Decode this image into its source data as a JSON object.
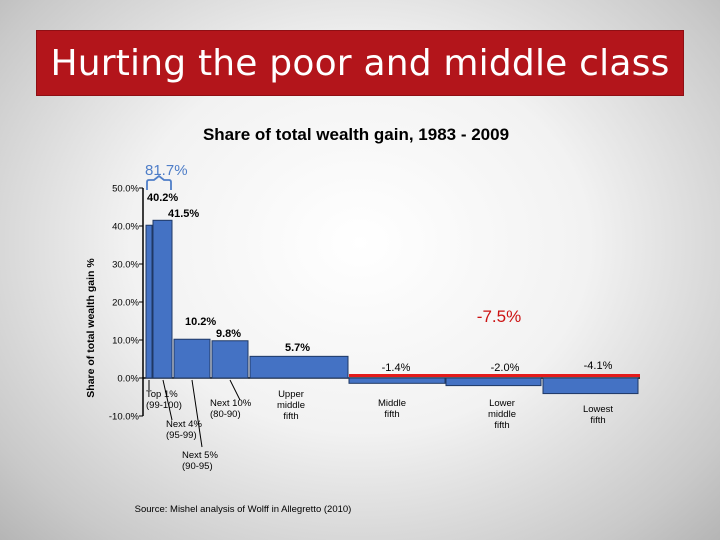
{
  "slide": {
    "title": "Hurting the poor and middle class"
  },
  "chart_data": {
    "type": "bar",
    "title": "Share of total wealth gain, 1983 - 2009",
    "xlabel": "",
    "ylabel": "Share of total wealth gain %",
    "ylim": [
      -10,
      50
    ],
    "yticks": [
      "50.0%",
      "40.0%",
      "30.0%",
      "20.0%",
      "10.0%",
      "0.0%",
      "-10.0%"
    ],
    "grid": false,
    "bar_color": "#4472c4",
    "categories": [
      "Top 1% (99-100)",
      "Next 4% (95-99)",
      "Next 5% (90-95)",
      "Next 10% (80-90)",
      "Upper middle fifth",
      "Middle fifth",
      "Lower middle fifth",
      "Lowest fifth"
    ],
    "category_labels": [
      {
        "lines": [
          "Top 1%",
          "(99-100)"
        ]
      },
      {
        "lines": [
          "Next 4%",
          "(95-99)"
        ]
      },
      {
        "lines": [
          "Next 5%",
          "(90-95)"
        ]
      },
      {
        "lines": [
          "Next 10%",
          "(80-90)"
        ]
      },
      {
        "lines": [
          "Upper",
          "middle",
          "fifth"
        ]
      },
      {
        "lines": [
          "Middle",
          "fifth"
        ]
      },
      {
        "lines": [
          "Lower",
          "middle",
          "fifth"
        ]
      },
      {
        "lines": [
          "Lowest",
          "fifth"
        ]
      }
    ],
    "values": [
      40.2,
      41.5,
      10.2,
      9.8,
      5.7,
      -1.4,
      -2.0,
      -4.1
    ],
    "data_labels": [
      "40.2%",
      "41.5%",
      "10.2%",
      "9.8%",
      "5.7%",
      "-1.4%",
      "-2.0%",
      "-4.1%"
    ],
    "annotations": {
      "top_group_total": "81.7%",
      "bottom_group_total": "-7.5%"
    },
    "source": "Source: Mishel analysis of Wolff in Allegretto (2010)"
  },
  "colors": {
    "banner": "#b3151b",
    "bar": "#4472c4",
    "annotation_blue": "#4f7ec8",
    "annotation_red": "#cc1111",
    "highlight_bar": "#e31b1b"
  }
}
